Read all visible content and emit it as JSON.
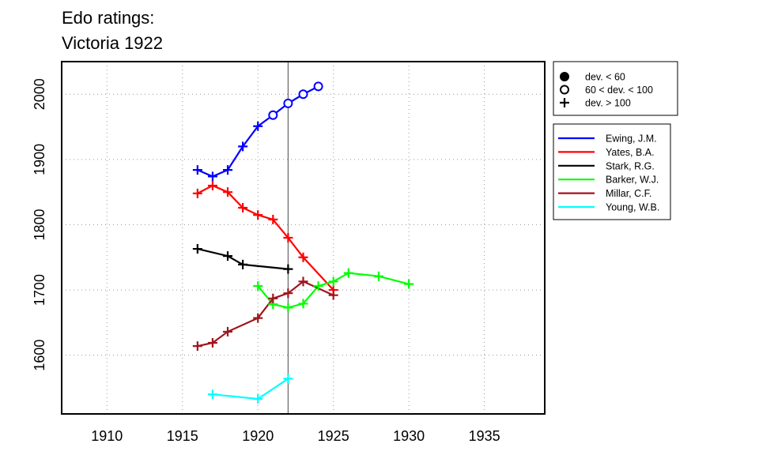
{
  "chart_data": {
    "type": "line",
    "title": [
      "Edo ratings:",
      "Victoria 1922"
    ],
    "xlabel": "",
    "ylabel": "",
    "xlim": [
      1907,
      1939
    ],
    "ylim": [
      1510,
      2050
    ],
    "xticks": [
      1910,
      1915,
      1920,
      1925,
      1930,
      1935
    ],
    "yticks": [
      1600,
      1700,
      1800,
      1900,
      2000
    ],
    "grid": true,
    "vline": 1922,
    "marker_legend": [
      {
        "marker": "dot",
        "label": "dev. < 60"
      },
      {
        "marker": "circle",
        "label": "60 < dev. < 100"
      },
      {
        "marker": "plus",
        "label": "dev. > 100"
      }
    ],
    "series": [
      {
        "name": "Ewing, J.M.",
        "color": "#0000ff",
        "points": [
          {
            "x": 1916,
            "y": 1884,
            "m": "plus"
          },
          {
            "x": 1917,
            "y": 1874,
            "m": "plus"
          },
          {
            "x": 1918,
            "y": 1884,
            "m": "plus"
          },
          {
            "x": 1919,
            "y": 1920,
            "m": "plus"
          },
          {
            "x": 1920,
            "y": 1951,
            "m": "plus"
          },
          {
            "x": 1921,
            "y": 1968,
            "m": "circle"
          },
          {
            "x": 1922,
            "y": 1986,
            "m": "circle"
          },
          {
            "x": 1923,
            "y": 2000,
            "m": "circle"
          },
          {
            "x": 1924,
            "y": 2012,
            "m": "circle"
          }
        ]
      },
      {
        "name": "Yates, B.A.",
        "color": "#ff0000",
        "points": [
          {
            "x": 1916,
            "y": 1848,
            "m": "plus"
          },
          {
            "x": 1917,
            "y": 1860,
            "m": "plus"
          },
          {
            "x": 1918,
            "y": 1850,
            "m": "plus"
          },
          {
            "x": 1919,
            "y": 1826,
            "m": "plus"
          },
          {
            "x": 1920,
            "y": 1815,
            "m": "plus"
          },
          {
            "x": 1921,
            "y": 1808,
            "m": "plus"
          },
          {
            "x": 1922,
            "y": 1780,
            "m": "plus"
          },
          {
            "x": 1923,
            "y": 1750,
            "m": "plus"
          },
          {
            "x": 1925,
            "y": 1700,
            "m": "plus"
          }
        ]
      },
      {
        "name": "Stark, R.G.",
        "color": "#000000",
        "points": [
          {
            "x": 1916,
            "y": 1763,
            "m": "plus"
          },
          {
            "x": 1918,
            "y": 1752,
            "m": "plus"
          },
          {
            "x": 1919,
            "y": 1739,
            "m": "plus"
          },
          {
            "x": 1922,
            "y": 1732,
            "m": "plus"
          }
        ]
      },
      {
        "name": "Barker, W.J.",
        "color": "#00ff00",
        "points": [
          {
            "x": 1920,
            "y": 1706,
            "m": "plus"
          },
          {
            "x": 1921,
            "y": 1678,
            "m": "plus"
          },
          {
            "x": 1922,
            "y": 1673,
            "m": "plus"
          },
          {
            "x": 1923,
            "y": 1679,
            "m": "plus"
          },
          {
            "x": 1924,
            "y": 1706,
            "m": "plus"
          },
          {
            "x": 1925,
            "y": 1713,
            "m": "plus"
          },
          {
            "x": 1926,
            "y": 1726,
            "m": "plus"
          },
          {
            "x": 1928,
            "y": 1721,
            "m": "plus"
          },
          {
            "x": 1930,
            "y": 1709,
            "m": "plus"
          }
        ]
      },
      {
        "name": "Millar, C.F.",
        "color": "#a0141e",
        "points": [
          {
            "x": 1916,
            "y": 1614,
            "m": "plus"
          },
          {
            "x": 1917,
            "y": 1619,
            "m": "plus"
          },
          {
            "x": 1918,
            "y": 1636,
            "m": "plus"
          },
          {
            "x": 1920,
            "y": 1657,
            "m": "plus"
          },
          {
            "x": 1921,
            "y": 1687,
            "m": "plus"
          },
          {
            "x": 1922,
            "y": 1695,
            "m": "plus"
          },
          {
            "x": 1923,
            "y": 1713,
            "m": "plus"
          },
          {
            "x": 1925,
            "y": 1692,
            "m": "plus"
          }
        ]
      },
      {
        "name": "Young, W.B.",
        "color": "#00ffff",
        "points": [
          {
            "x": 1917,
            "y": 1540,
            "m": "plus"
          },
          {
            "x": 1920,
            "y": 1533,
            "m": "plus"
          },
          {
            "x": 1922,
            "y": 1564,
            "m": "plus"
          }
        ]
      }
    ]
  }
}
